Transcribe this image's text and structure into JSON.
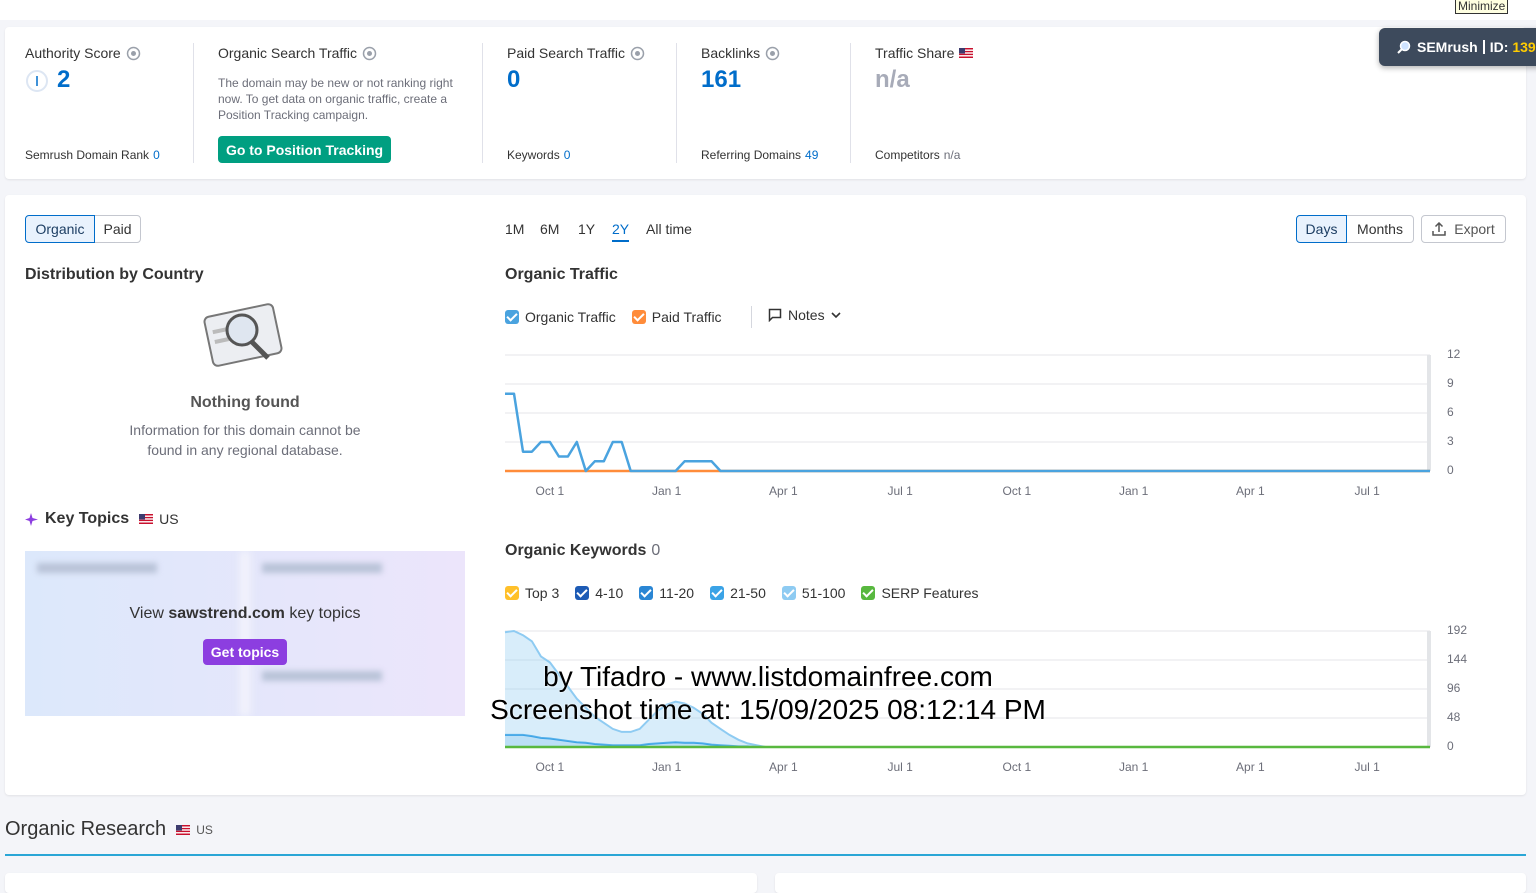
{
  "minimize": "Minimize",
  "badge": {
    "brand": "SEMrush",
    "id_label": "ID:",
    "id": "139"
  },
  "metrics": [
    {
      "label": "Authority Score",
      "value": 2,
      "sub_label": "Semrush Domain Rank",
      "sub_value": 0
    },
    {
      "label": "Organic Search Traffic",
      "text": "The domain may be new or not ranking right now. To get data on organic traffic, create a Position Tracking campaign.",
      "button": "Go to Position Tracking"
    },
    {
      "label": "Paid Search Traffic",
      "value": 0,
      "sub_label": "Keywords",
      "sub_value": 0
    },
    {
      "label": "Backlinks",
      "value": 161,
      "sub_label": "Referring Domains",
      "sub_value": 49
    },
    {
      "label": "Traffic Share",
      "value": "n/a",
      "sub_label": "Competitors",
      "sub_value": "n/a"
    }
  ],
  "tabs": [
    "Organic",
    "Paid"
  ],
  "periods": [
    "1M",
    "6M",
    "1Y",
    "2Y",
    "All time"
  ],
  "granularity": [
    "Days",
    "Months"
  ],
  "export": "Export",
  "distribution": {
    "title": "Distribution by Country",
    "empty_title": "Nothing found",
    "empty_text": "Information for this domain cannot be found in any regional database."
  },
  "key_topics": {
    "title": "Key Topics",
    "region": "US",
    "cta_prefix": "View",
    "domain": "sawstrend.com",
    "cta_suffix": "key topics",
    "button": "Get topics"
  },
  "notes": "Notes",
  "watermark": [
    "by Tifadro - www.listdomainfree.com",
    "Screenshot time at: 15/09/2025 08:12:14 PM"
  ],
  "organic_research": {
    "title": "Organic Research",
    "region": "US"
  },
  "chart_data": [
    {
      "type": "line",
      "title": "Organic Traffic",
      "grid": true,
      "categories": [
        null,
        null,
        null,
        null,
        null,
        "Oct 1",
        null,
        null,
        null,
        null,
        null,
        null,
        null,
        null,
        null,
        null,
        null,
        null,
        "Jan 1",
        null,
        null,
        null,
        null,
        null,
        null,
        null,
        null,
        null,
        null,
        null,
        null,
        "Apr 1",
        null,
        null,
        null,
        null,
        null,
        null,
        null,
        null,
        null,
        null,
        null,
        null,
        "Jul 1",
        null,
        null,
        null,
        null,
        null,
        null,
        null,
        null,
        null,
        null,
        null,
        null,
        "Oct 1",
        null,
        null,
        null,
        null,
        null,
        null,
        null,
        null,
        null,
        null,
        null,
        null,
        "Jan 1",
        null,
        null,
        null,
        null,
        null,
        null,
        null,
        null,
        null,
        null,
        null,
        null,
        "Apr 1",
        null,
        null,
        null,
        null,
        null,
        null,
        null,
        null,
        null,
        null,
        null,
        null,
        "Jul 1",
        null,
        null,
        null,
        null,
        null,
        null,
        null
      ],
      "ylim": [
        0,
        12
      ],
      "yticks": [
        0,
        3,
        6,
        9,
        12
      ],
      "series": [
        {
          "name": "Organic Traffic",
          "color": "#4aa3df",
          "values": [
            8,
            8,
            2,
            2,
            3,
            3,
            1.5,
            1.5,
            3,
            0,
            1,
            1,
            3,
            3,
            0,
            0,
            0,
            0,
            0,
            0,
            1,
            1,
            1,
            1,
            0,
            0,
            0,
            0,
            0,
            0,
            0,
            0,
            0,
            0,
            0,
            0,
            0,
            0,
            0,
            0,
            0,
            0,
            0,
            0,
            0,
            0,
            0,
            0,
            0,
            0,
            0,
            0,
            0,
            0,
            0,
            0,
            0,
            0,
            0,
            0,
            0,
            0,
            0,
            0,
            0,
            0,
            0,
            0,
            0,
            0,
            0,
            0,
            0,
            0,
            0,
            0,
            0,
            0,
            0,
            0,
            0,
            0,
            0,
            0,
            0,
            0,
            0,
            0,
            0,
            0,
            0,
            0,
            0,
            0,
            0,
            0,
            0,
            0,
            0,
            0,
            0,
            0,
            0,
            0
          ]
        },
        {
          "name": "Paid Traffic",
          "color": "#ff8c3a",
          "values": [
            0,
            0,
            0,
            0,
            0,
            0,
            0,
            0,
            0,
            0,
            0,
            0,
            0,
            0,
            0,
            0,
            0,
            0,
            0,
            0,
            0,
            0,
            0,
            0,
            0,
            0,
            0,
            0,
            0,
            0,
            0,
            0,
            0,
            0,
            0,
            0,
            0,
            0,
            0,
            0,
            0,
            0,
            0,
            0,
            0,
            0,
            0,
            0,
            0,
            0,
            0,
            0,
            0,
            0,
            0,
            0,
            0,
            0,
            0,
            0,
            0,
            0,
            0,
            0,
            0,
            0,
            0,
            0,
            0,
            0,
            0,
            0,
            0,
            0,
            0,
            0,
            0,
            0,
            0,
            0,
            0,
            0,
            0,
            0,
            0,
            0,
            0,
            0,
            0,
            0,
            0,
            0,
            0,
            0,
            0,
            0,
            0,
            0,
            0,
            0,
            0,
            0,
            0,
            0
          ]
        }
      ]
    },
    {
      "type": "area",
      "title": "Organic Keywords",
      "count": 0,
      "grid": true,
      "categories": [
        null,
        null,
        null,
        null,
        null,
        "Oct 1",
        null,
        null,
        null,
        null,
        null,
        null,
        null,
        null,
        null,
        null,
        null,
        null,
        "Jan 1",
        null,
        null,
        null,
        null,
        null,
        null,
        null,
        null,
        null,
        null,
        null,
        null,
        "Apr 1",
        null,
        null,
        null,
        null,
        null,
        null,
        null,
        null,
        null,
        null,
        null,
        null,
        "Jul 1",
        null,
        null,
        null,
        null,
        null,
        null,
        null,
        null,
        null,
        null,
        null,
        null,
        "Oct 1",
        null,
        null,
        null,
        null,
        null,
        null,
        null,
        null,
        null,
        null,
        null,
        null,
        "Jan 1",
        null,
        null,
        null,
        null,
        null,
        null,
        null,
        null,
        null,
        null,
        null,
        null,
        "Apr 1",
        null,
        null,
        null,
        null,
        null,
        null,
        null,
        null,
        null,
        null,
        null,
        null,
        "Jul 1",
        null,
        null,
        null,
        null,
        null,
        null,
        null
      ],
      "ylim": [
        0,
        192
      ],
      "yticks": [
        0,
        48,
        96,
        144,
        192
      ],
      "series": [
        {
          "name": "Top 3",
          "color": "#ffc02a",
          "values": [
            0,
            0,
            0,
            0,
            0,
            0,
            0,
            0,
            0,
            0,
            0,
            0,
            0,
            0,
            0,
            0,
            0,
            0,
            0,
            0,
            0,
            0,
            0,
            0,
            0,
            0,
            0,
            0,
            0,
            0,
            0,
            0,
            0,
            0,
            0,
            0,
            0,
            0,
            0,
            0,
            0,
            0,
            0,
            0,
            0,
            0,
            0,
            0,
            0,
            0,
            0,
            0,
            0,
            0,
            0,
            0,
            0,
            0,
            0,
            0,
            0,
            0,
            0,
            0,
            0,
            0,
            0,
            0,
            0,
            0,
            0,
            0,
            0,
            0,
            0,
            0,
            0,
            0,
            0,
            0,
            0,
            0,
            0,
            0,
            0,
            0,
            0,
            0,
            0,
            0,
            0,
            0,
            0,
            0,
            0,
            0,
            0,
            0,
            0,
            0,
            0,
            0,
            0,
            0
          ]
        },
        {
          "name": "4-10",
          "color": "#1d5bb5",
          "values": [
            0,
            0,
            0,
            0,
            0,
            0,
            0,
            0,
            0,
            0,
            0,
            0,
            0,
            0,
            0,
            0,
            0,
            0,
            0,
            0,
            0,
            0,
            0,
            0,
            0,
            0,
            0,
            0,
            0,
            0,
            0,
            0,
            0,
            0,
            0,
            0,
            0,
            0,
            0,
            0,
            0,
            0,
            0,
            0,
            0,
            0,
            0,
            0,
            0,
            0,
            0,
            0,
            0,
            0,
            0,
            0,
            0,
            0,
            0,
            0,
            0,
            0,
            0,
            0,
            0,
            0,
            0,
            0,
            0,
            0,
            0,
            0,
            0,
            0,
            0,
            0,
            0,
            0,
            0,
            0,
            0,
            0,
            0,
            0,
            0,
            0,
            0,
            0,
            0,
            0,
            0,
            0,
            0,
            0,
            0,
            0,
            0,
            0,
            0,
            0,
            0,
            0,
            0,
            0
          ]
        },
        {
          "name": "11-20",
          "color": "#2a86d4",
          "values": [
            0,
            0,
            0,
            0,
            0,
            0,
            0,
            0,
            0,
            0,
            0,
            0,
            0,
            0,
            0,
            0,
            0,
            0,
            0,
            0,
            0,
            0,
            0,
            0,
            0,
            0,
            0,
            0,
            0,
            0,
            0,
            0,
            0,
            0,
            0,
            0,
            0,
            0,
            0,
            0,
            0,
            0,
            0,
            0,
            0,
            0,
            0,
            0,
            0,
            0,
            0,
            0,
            0,
            0,
            0,
            0,
            0,
            0,
            0,
            0,
            0,
            0,
            0,
            0,
            0,
            0,
            0,
            0,
            0,
            0,
            0,
            0,
            0,
            0,
            0,
            0,
            0,
            0,
            0,
            0,
            0,
            0,
            0,
            0,
            0,
            0,
            0,
            0,
            0,
            0,
            0,
            0,
            0,
            0,
            0,
            0,
            0,
            0,
            0,
            0,
            0,
            0,
            0,
            0
          ]
        },
        {
          "name": "21-50",
          "color": "#3ba3e6",
          "values": [
            20,
            20,
            20,
            18,
            15,
            14,
            12,
            10,
            8,
            7,
            5,
            4,
            3,
            3,
            3,
            3,
            5,
            6,
            7,
            8,
            7,
            7,
            6,
            4,
            3,
            2,
            1,
            1,
            0,
            0,
            0,
            0,
            0,
            0,
            0,
            0,
            0,
            0,
            0,
            0,
            0,
            0,
            0,
            0,
            0,
            0,
            0,
            0,
            0,
            0,
            0,
            0,
            0,
            0,
            0,
            0,
            0,
            0,
            0,
            0,
            0,
            0,
            0,
            0,
            0,
            0,
            0,
            0,
            0,
            0,
            0,
            0,
            0,
            0,
            0,
            0,
            0,
            0,
            0,
            0,
            0,
            0,
            0,
            0,
            0,
            0,
            0,
            0,
            0,
            0,
            0,
            0,
            0,
            0,
            0,
            0,
            0,
            0,
            0,
            0,
            0,
            0,
            0,
            0
          ]
        },
        {
          "name": "51-100",
          "color": "#8ecbf2",
          "values": [
            170,
            172,
            165,
            157,
            135,
            126,
            108,
            90,
            72,
            58,
            45,
            36,
            27,
            22,
            22,
            27,
            40,
            54,
            63,
            67,
            65,
            58,
            49,
            36,
            27,
            18,
            11,
            5,
            3,
            0,
            0,
            0,
            0,
            0,
            0,
            0,
            0,
            0,
            0,
            0,
            0,
            0,
            0,
            0,
            0,
            0,
            0,
            0,
            0,
            0,
            0,
            0,
            0,
            0,
            0,
            0,
            0,
            0,
            0,
            0,
            0,
            0,
            0,
            0,
            0,
            0,
            0,
            0,
            0,
            0,
            0,
            0,
            0,
            0,
            0,
            0,
            0,
            0,
            0,
            0,
            0,
            0,
            0,
            0,
            0,
            0,
            0,
            0,
            0,
            0,
            0,
            0,
            0,
            0,
            0,
            0,
            0,
            0,
            0,
            0,
            0,
            0,
            0,
            0
          ]
        },
        {
          "name": "SERP Features",
          "color": "#58b83f",
          "type": "line",
          "values": [
            0,
            0,
            0,
            0,
            0,
            0,
            0,
            0,
            0,
            0,
            0,
            0,
            0,
            0,
            0,
            0,
            0,
            0,
            0,
            0,
            0,
            0,
            0,
            0,
            0,
            0,
            0,
            0,
            0,
            0,
            0,
            0,
            0,
            0,
            0,
            0,
            0,
            0,
            0,
            0,
            0,
            0,
            0,
            0,
            0,
            0,
            0,
            0,
            0,
            0,
            0,
            0,
            0,
            0,
            0,
            0,
            0,
            0,
            0,
            0,
            0,
            0,
            0,
            0,
            0,
            0,
            0,
            0,
            0,
            0,
            0,
            0,
            0,
            0,
            0,
            0,
            0,
            0,
            0,
            0,
            0,
            0,
            0,
            0,
            0,
            0,
            0,
            0,
            0,
            0,
            0,
            0,
            0,
            0,
            0,
            0,
            0,
            0,
            0,
            0,
            0,
            0,
            0,
            0
          ]
        }
      ]
    }
  ]
}
